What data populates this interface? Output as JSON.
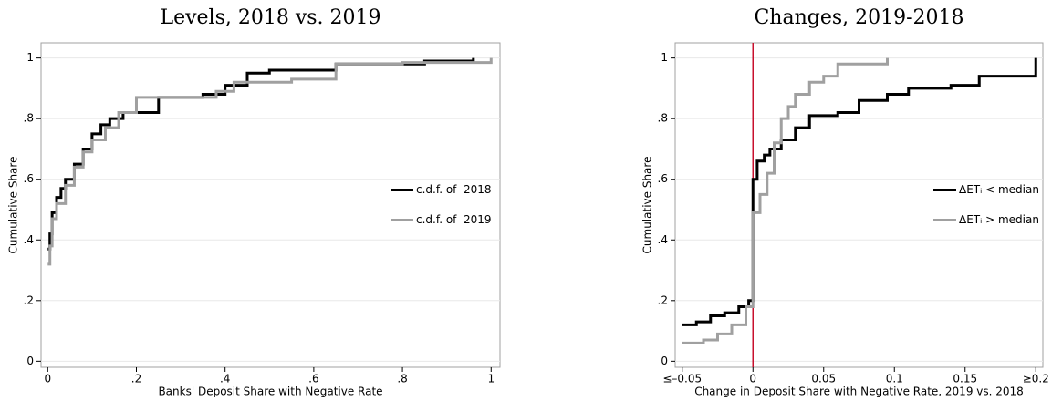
{
  "chart_data": [
    {
      "type": "line",
      "step": true,
      "title": "Levels, 2018 vs. 2019",
      "xlabel": "Banks' Deposit Share with Negative Rate",
      "ylabel": "Cumulative Share",
      "xlim": [
        -0.015,
        1.02
      ],
      "ylim": [
        -0.02,
        1.05
      ],
      "xticks": [
        0,
        {
          "value": 0.2,
          "label": ".2"
        },
        {
          "value": 0.4,
          "label": ".4"
        },
        {
          "value": 0.6,
          "label": ".6"
        },
        {
          "value": 0.8,
          "label": ".8"
        },
        1
      ],
      "yticks": [
        0,
        {
          "value": 0.2,
          "label": ".2"
        },
        {
          "value": 0.4,
          "label": ".4"
        },
        {
          "value": 0.6,
          "label": ".6"
        },
        {
          "value": 0.8,
          "label": ".8"
        },
        1
      ],
      "grid": true,
      "legend": "right",
      "series": [
        {
          "name": "c.d.f. of  2018",
          "color": "#000000",
          "x": [
            0,
            0.005,
            0.01,
            0.02,
            0.03,
            0.04,
            0.06,
            0.08,
            0.1,
            0.12,
            0.14,
            0.17,
            0.25,
            0.35,
            0.4,
            0.45,
            0.5,
            0.65,
            0.85,
            0.96
          ],
          "y": [
            0.37,
            0.42,
            0.49,
            0.54,
            0.57,
            0.6,
            0.65,
            0.7,
            0.75,
            0.78,
            0.8,
            0.82,
            0.87,
            0.88,
            0.91,
            0.95,
            0.96,
            0.98,
            0.99,
            1.0
          ]
        },
        {
          "name": "c.d.f. of  2019",
          "color": "#a0a0a0",
          "x": [
            0,
            0.005,
            0.01,
            0.02,
            0.04,
            0.06,
            0.08,
            0.1,
            0.13,
            0.16,
            0.2,
            0.3,
            0.38,
            0.42,
            0.55,
            0.65,
            0.8,
            1.0,
            1.0
          ],
          "y": [
            0.32,
            0.38,
            0.47,
            0.52,
            0.58,
            0.64,
            0.69,
            0.73,
            0.77,
            0.82,
            0.87,
            0.87,
            0.89,
            0.92,
            0.93,
            0.98,
            0.985,
            0.985,
            1.0
          ]
        }
      ]
    },
    {
      "type": "line",
      "step": true,
      "title": "Changes, 2019-2018",
      "xlabel": "Change in Deposit Share with Negative Rate, 2019 vs. 2018",
      "ylabel": "Cumulative Share",
      "xlim": [
        -0.055,
        0.205
      ],
      "ylim": [
        -0.02,
        1.05
      ],
      "xticks": [
        {
          "value": -0.05,
          "label": "≤–0.05"
        },
        0,
        0.05,
        0.1,
        0.15,
        {
          "value": 0.2,
          "label": "≥0.2"
        }
      ],
      "yticks": [
        0,
        {
          "value": 0.2,
          "label": ".2"
        },
        {
          "value": 0.4,
          "label": ".4"
        },
        {
          "value": 0.6,
          "label": ".6"
        },
        {
          "value": 0.8,
          "label": ".8"
        },
        1
      ],
      "grid": true,
      "legend": "right",
      "vline": 0,
      "vline_color": "#c8102e",
      "series": [
        {
          "name": "ΔETᵢ < median",
          "color": "#000000",
          "x": [
            -0.05,
            -0.04,
            -0.03,
            -0.02,
            -0.01,
            -0.003,
            0,
            0,
            0.003,
            0.008,
            0.012,
            0.02,
            0.03,
            0.04,
            0.06,
            0.075,
            0.095,
            0.11,
            0.14,
            0.16,
            0.2,
            0.2
          ],
          "y": [
            0.12,
            0.13,
            0.15,
            0.16,
            0.18,
            0.2,
            0.24,
            0.6,
            0.66,
            0.68,
            0.7,
            0.73,
            0.77,
            0.81,
            0.82,
            0.86,
            0.88,
            0.9,
            0.91,
            0.94,
            0.94,
            1.0
          ]
        },
        {
          "name": "ΔETᵢ > median",
          "color": "#a0a0a0",
          "x": [
            -0.05,
            -0.035,
            -0.025,
            -0.015,
            -0.005,
            0,
            0,
            0.005,
            0.01,
            0.015,
            0.02,
            0.025,
            0.03,
            0.04,
            0.05,
            0.06,
            0.095,
            0.095
          ],
          "y": [
            0.06,
            0.07,
            0.09,
            0.12,
            0.18,
            0.23,
            0.49,
            0.55,
            0.62,
            0.72,
            0.8,
            0.84,
            0.88,
            0.92,
            0.94,
            0.98,
            0.98,
            1.0
          ]
        }
      ]
    }
  ]
}
